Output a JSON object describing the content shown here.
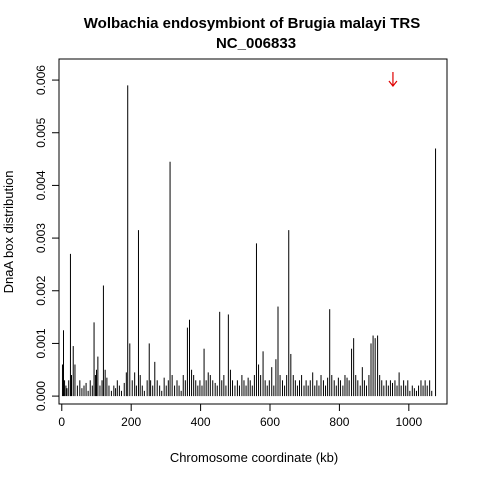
{
  "chart_data": {
    "type": "bar",
    "title": "Wolbachia endosymbiont of Brugia malayi TRS",
    "subtitle": "NC_006833",
    "xlabel": "Chromosome coordinate (kb)",
    "ylabel": "DnaA box distribution",
    "xlim": [
      -8,
      1110
    ],
    "ylim": [
      -0.00015,
      0.0064
    ],
    "xticks": [
      0,
      200,
      400,
      600,
      800,
      1000
    ],
    "xtick_labels": [
      "0",
      "200",
      "400",
      "600",
      "800",
      "1000"
    ],
    "yticks": [
      0.0,
      0.001,
      0.002,
      0.003,
      0.004,
      0.005,
      0.006
    ],
    "ytick_labels": [
      "0.000",
      "0.001",
      "0.002",
      "0.003",
      "0.004",
      "0.005",
      "0.006"
    ],
    "grid": false,
    "bar_color": "#000000",
    "marker": {
      "type": "arrow-down",
      "x": 960,
      "color": "#e00000"
    },
    "x": [
      2,
      5,
      8,
      12,
      15,
      20,
      25,
      28,
      33,
      38,
      45,
      52,
      58,
      64,
      70,
      76,
      82,
      88,
      93,
      97,
      100,
      104,
      110,
      116,
      120,
      125,
      130,
      136,
      143,
      150,
      155,
      160,
      166,
      172,
      180,
      186,
      190,
      196,
      203,
      210,
      215,
      221,
      226,
      232,
      238,
      246,
      252,
      256,
      262,
      268,
      275,
      282,
      288,
      295,
      301,
      307,
      312,
      318,
      325,
      332,
      338,
      344,
      350,
      356,
      362,
      368,
      374,
      380,
      386,
      392,
      398,
      404,
      410,
      416,
      422,
      428,
      435,
      442,
      448,
      455,
      461,
      467,
      473,
      480,
      486,
      492,
      499,
      506,
      512,
      519,
      525,
      531,
      537,
      543,
      549,
      555,
      561,
      567,
      573,
      580,
      586,
      592,
      598,
      605,
      611,
      617,
      623,
      629,
      636,
      642,
      648,
      654,
      660,
      667,
      673,
      679,
      685,
      691,
      698,
      704,
      710,
      716,
      723,
      729,
      735,
      741,
      747,
      754,
      760,
      766,
      772,
      778,
      785,
      791,
      797,
      803,
      810,
      816,
      822,
      828,
      835,
      841,
      847,
      853,
      860,
      866,
      872,
      878,
      885,
      891,
      897,
      903,
      910,
      916,
      922,
      928,
      935,
      941,
      947,
      953,
      960,
      966,
      972,
      978,
      985,
      991,
      997,
      1003,
      1010,
      1016,
      1022,
      1028,
      1035,
      1041,
      1047,
      1053,
      1060,
      1066,
      1077
    ],
    "values": [
      0.0006,
      0.00125,
      0.0003,
      0.0002,
      0.00015,
      0.0003,
      0.0027,
      0.0004,
      0.00095,
      0.0006,
      0.0002,
      0.0003,
      0.00015,
      0.0002,
      0.00025,
      0.0001,
      0.0003,
      0.0002,
      0.0014,
      0.0004,
      0.0005,
      0.00075,
      0.0002,
      0.0003,
      0.0021,
      0.0005,
      0.00035,
      0.0002,
      0.0001,
      0.0002,
      0.00015,
      0.0003,
      0.0002,
      0.0001,
      0.00025,
      0.00045,
      0.0059,
      0.001,
      0.0003,
      0.00045,
      0.0002,
      0.00315,
      0.0004,
      0.0002,
      0.0001,
      0.0003,
      0.001,
      0.0003,
      0.0002,
      0.00065,
      0.0003,
      0.0002,
      0.0001,
      0.00035,
      0.0002,
      0.0003,
      0.00445,
      0.0004,
      0.0002,
      0.0003,
      0.0002,
      0.0001,
      0.0004,
      0.0003,
      0.0013,
      0.00145,
      0.0005,
      0.0004,
      0.0003,
      0.0002,
      0.0003,
      0.0002,
      0.0009,
      0.0003,
      0.00045,
      0.0004,
      0.0003,
      0.00025,
      0.0002,
      0.0016,
      0.0003,
      0.0004,
      0.0002,
      0.00155,
      0.0005,
      0.0003,
      0.0002,
      0.0003,
      0.0002,
      0.0004,
      0.0003,
      0.0002,
      0.00035,
      0.0003,
      0.0002,
      0.0004,
      0.0029,
      0.0006,
      0.0004,
      0.00085,
      0.0003,
      0.0002,
      0.0003,
      0.00055,
      0.0002,
      0.0007,
      0.0017,
      0.0004,
      0.0003,
      0.0002,
      0.0004,
      0.00315,
      0.0008,
      0.0004,
      0.0003,
      0.0002,
      0.0003,
      0.0004,
      0.0002,
      0.0003,
      0.0002,
      0.0003,
      0.00045,
      0.0002,
      0.0003,
      0.0002,
      0.0004,
      0.0003,
      0.0002,
      0.00035,
      0.00165,
      0.0004,
      0.0003,
      0.0002,
      0.00035,
      0.0003,
      0.0002,
      0.0004,
      0.00035,
      0.0003,
      0.0009,
      0.0011,
      0.0004,
      0.0003,
      0.0002,
      0.00055,
      0.0003,
      0.0002,
      0.0004,
      0.001,
      0.00115,
      0.0011,
      0.00115,
      0.0004,
      0.0003,
      0.0002,
      0.0003,
      0.0002,
      0.0003,
      0.00025,
      0.0003,
      0.0002,
      0.00045,
      0.0002,
      0.0003,
      0.0002,
      0.0003,
      0.0001,
      0.0002,
      0.00015,
      0.0001,
      0.0002,
      0.0003,
      0.0002,
      0.0003,
      0.0002,
      0.0003,
      0.0001,
      0.0047
    ]
  }
}
